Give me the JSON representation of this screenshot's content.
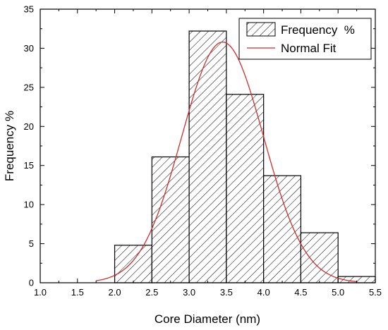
{
  "chart_data": {
    "type": "bar",
    "xlabel": "Core Diameter (nm)",
    "ylabel": "Frequency %",
    "xlim": [
      1.0,
      5.5
    ],
    "ylim": [
      0,
      35
    ],
    "xticks": [
      "1.0",
      "1.5",
      "2.0",
      "2.5",
      "3.0",
      "3.5",
      "4.0",
      "4.5",
      "5.0",
      "5.5"
    ],
    "yticks": [
      "0",
      "5",
      "10",
      "15",
      "20",
      "25",
      "30",
      "35"
    ],
    "grid": false,
    "legend_position": "top-right",
    "series": [
      {
        "name": "Frequency  %",
        "type": "histogram",
        "bins": [
          {
            "x0": 2.0,
            "x1": 2.5,
            "value": 4.8
          },
          {
            "x0": 2.5,
            "x1": 3.0,
            "value": 16.1
          },
          {
            "x0": 3.0,
            "x1": 3.5,
            "value": 32.2
          },
          {
            "x0": 3.5,
            "x1": 4.0,
            "value": 24.1
          },
          {
            "x0": 4.0,
            "x1": 4.5,
            "value": 13.7
          },
          {
            "x0": 4.5,
            "x1": 5.0,
            "value": 6.4
          },
          {
            "x0": 5.0,
            "x1": 5.5,
            "value": 0.8
          }
        ],
        "color": "#000000"
      },
      {
        "name": "Normal Fit",
        "type": "line",
        "mean": 3.45,
        "sd": 0.55,
        "peak": 30.8,
        "x_range": [
          1.75,
          5.25
        ],
        "color": "#cc2e2e"
      }
    ]
  }
}
